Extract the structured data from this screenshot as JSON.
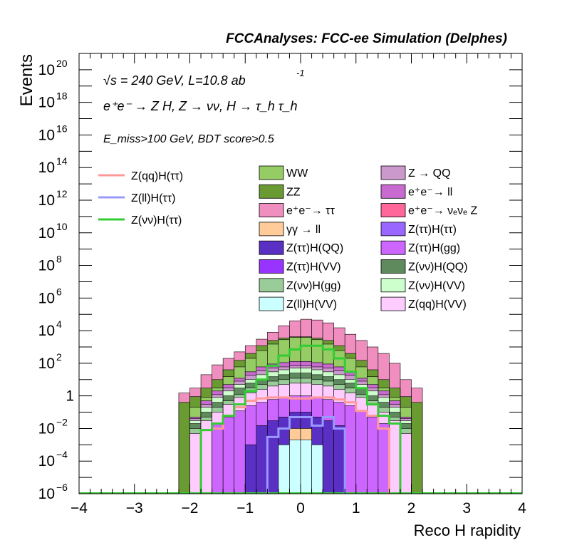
{
  "chart_data": {
    "type": "histogram",
    "title": "FCCAnalyses: FCC-ee Simulation (Delphes)",
    "xlabel": "Reco H rapidity",
    "ylabel": "Events",
    "xlim": [
      -4,
      4
    ],
    "ylim": [
      1e-06,
      1e+21
    ],
    "log_y": true,
    "grid": false,
    "legend_position": "top (three columns)",
    "annotations": {
      "energy": "√s = 240 GeV, L=10.8 ab",
      "energy_exp": "-1",
      "process": "e⁺e⁻ → Z H, Z → νν, H → τ_h τ_h",
      "cuts": "E_miss>100 GeV, BDT score>0.5"
    },
    "x_ticks": [
      -4,
      -3,
      -2,
      -1,
      0,
      1,
      2,
      3,
      4
    ],
    "x_tick_labels": [
      "−4",
      "−3",
      "−2",
      "−1",
      "0",
      "1",
      "2",
      "3",
      "4"
    ],
    "y_ticks": [
      {
        "value": 1e-06,
        "base": "10",
        "exp": "−6"
      },
      {
        "value": 0.0001,
        "base": "10",
        "exp": "−4"
      },
      {
        "value": 0.01,
        "base": "10",
        "exp": "−2"
      },
      {
        "value": 1,
        "base": "1",
        "exp": ""
      },
      {
        "value": 100.0,
        "base": "10",
        "exp": "2"
      },
      {
        "value": 10000.0,
        "base": "10",
        "exp": "4"
      },
      {
        "value": 1000000.0,
        "base": "10",
        "exp": "6"
      },
      {
        "value": 100000000.0,
        "base": "10",
        "exp": "8"
      },
      {
        "value": 10000000000.0,
        "base": "10",
        "exp": "10"
      },
      {
        "value": 1000000000000.0,
        "base": "10",
        "exp": "12"
      },
      {
        "value": 100000000000000.0,
        "base": "10",
        "exp": "14"
      },
      {
        "value": 1e+16,
        "base": "10",
        "exp": "16"
      },
      {
        "value": 1e+18,
        "base": "10",
        "exp": "18"
      },
      {
        "value": 1e+20,
        "base": "10",
        "exp": "20"
      }
    ],
    "bin_edges": [
      -2.2,
      -2.0,
      -1.8,
      -1.6,
      -1.4,
      -1.2,
      -1.0,
      -0.8,
      -0.6,
      -0.4,
      -0.2,
      0.0,
      0.2,
      0.4,
      0.6,
      0.8,
      1.0,
      1.2,
      1.4,
      1.6,
      1.8,
      2.0,
      2.2
    ],
    "stack_envelopes": [
      {
        "name": "e⁺e⁻→ ττ",
        "color": "#f08fbf",
        "values": [
          1.5,
          3,
          20,
          80,
          200,
          500,
          1200,
          3000,
          8000,
          20000,
          40000,
          50000,
          45000,
          30000,
          15000,
          6000,
          2500,
          1000,
          400,
          100,
          10,
          3
        ]
      },
      {
        "name": "ZZ",
        "color": "#6a9a32",
        "values": [
          0.4,
          0.9,
          3,
          10,
          40,
          150,
          400,
          1200,
          2500,
          3500,
          4200,
          4200,
          3500,
          2500,
          1200,
          400,
          150,
          40,
          10,
          3,
          0.9,
          0.4
        ]
      },
      {
        "name": "WW",
        "color": "#96cc64",
        "values": [
          0,
          0.2,
          0.8,
          3,
          15,
          60,
          200,
          600,
          1500,
          2800,
          3800,
          3800,
          2800,
          1500,
          600,
          200,
          60,
          15,
          3,
          0.8,
          0.2,
          0
        ]
      },
      {
        "name": "e⁺e⁻→ ll",
        "color": "#c86ad0",
        "values": [
          0,
          0.05,
          0.5,
          2,
          5,
          12,
          30,
          60,
          90,
          110,
          130,
          130,
          110,
          90,
          60,
          30,
          12,
          5,
          2,
          0.5,
          0.05,
          0
        ]
      },
      {
        "name": "Z → QQ",
        "color": "#cc99cc",
        "values": [
          0,
          0.04,
          0.3,
          1.2,
          3,
          8,
          18,
          35,
          50,
          60,
          70,
          70,
          60,
          50,
          35,
          18,
          8,
          3,
          1.2,
          0.3,
          0.04,
          0
        ]
      },
      {
        "name": "Z(νν)H(VV)",
        "color": "#ccffcc",
        "values": [
          0,
          0.03,
          0.2,
          0.8,
          2,
          5,
          10,
          20,
          30,
          40,
          50,
          50,
          40,
          30,
          20,
          10,
          5,
          2,
          0.8,
          0.2,
          0.03,
          0
        ]
      },
      {
        "name": "Z(νν)H(QQ)",
        "color": "#5e8a5e",
        "values": [
          0,
          0.02,
          0.1,
          0.4,
          1,
          3,
          6,
          10,
          15,
          20,
          25,
          25,
          20,
          15,
          10,
          6,
          3,
          1,
          0.4,
          0.1,
          0.02,
          0
        ]
      },
      {
        "name": "Z(νν)H(gg)",
        "color": "#99cc99",
        "values": [
          0,
          0.01,
          0.05,
          0.2,
          0.5,
          1.2,
          3,
          5,
          8,
          10,
          12,
          12,
          10,
          8,
          5,
          3,
          1.2,
          0.5,
          0.2,
          0.05,
          0.01,
          0
        ]
      },
      {
        "name": "Z(qq)H(VV)",
        "color": "#ffccff",
        "values": [
          0,
          0.005,
          0.03,
          0.1,
          0.3,
          0.8,
          1.5,
          2.5,
          4,
          5,
          6,
          6,
          5,
          4,
          2.5,
          1.5,
          0.8,
          0.3,
          0.1,
          0.03,
          0.005,
          0
        ]
      },
      {
        "name": "Z(ττ)H(gg)",
        "color": "#cc66ff",
        "values": [
          0,
          0,
          0,
          0.02,
          0.05,
          0.12,
          0.25,
          0.4,
          0.6,
          0.8,
          1,
          1,
          0.8,
          0.6,
          0.4,
          0.25,
          0.12,
          0.05,
          0.02,
          0,
          0,
          0
        ]
      },
      {
        "name": "Z(ττ)H(QQ)",
        "color": "#5a2fc4",
        "values": [
          0,
          0,
          0,
          0,
          0,
          0,
          0.001,
          0.015,
          0.03,
          0.05,
          0.1,
          0.1,
          0.05,
          0.03,
          0.015,
          1e-06,
          0,
          0,
          0,
          0,
          0,
          0
        ]
      },
      {
        "name": "γγ → ll",
        "color": "#ffcc99",
        "values": [
          0,
          0,
          0,
          0,
          0,
          0,
          0,
          0,
          0,
          0,
          0.01,
          0.01,
          0,
          0,
          0,
          0,
          0,
          0,
          0,
          0,
          0,
          0
        ]
      },
      {
        "name": "Z(ll)H(VV)",
        "color": "#ccffff",
        "values": [
          0,
          0,
          0,
          0,
          0,
          0,
          0,
          0,
          0,
          0.001,
          0.002,
          0.002,
          0.001,
          0,
          0,
          0,
          0,
          0,
          0,
          0,
          0,
          0
        ]
      }
    ],
    "overlays": [
      {
        "name": "Z(qq)H(ττ)",
        "color": "#ff9999",
        "bin_edges": [
          -1.8,
          -1.6,
          -1.4,
          -1.2,
          -1.0,
          -0.8,
          -0.6,
          -0.4,
          -0.2,
          0.0,
          0.2,
          0.4,
          0.6,
          0.8,
          1.0,
          1.2,
          1.4,
          1.6
        ],
        "values": [
          0.008,
          0.01,
          0.06,
          0.2,
          0.5,
          0.7,
          0.8,
          0.8,
          0.7,
          0.7,
          0.8,
          0.8,
          0.6,
          0.4,
          0.12,
          0.06,
          0.01
        ]
      },
      {
        "name": "Z(ll)H(ττ)",
        "color": "#9999ff",
        "bin_edges": [
          -0.6,
          -0.4,
          -0.2,
          0.0,
          0.2,
          0.4,
          0.6,
          0.8
        ],
        "values": [
          0.003,
          0.01,
          0.05,
          0.05,
          0.015,
          0.05,
          0.01
        ]
      },
      {
        "name": "Z(νν)H(ττ)",
        "color": "#33cc33",
        "bin_edges": [
          -1.8,
          -1.6,
          -1.4,
          -1.2,
          -1.0,
          -0.8,
          -0.6,
          -0.4,
          -0.2,
          0.0,
          0.2,
          0.4,
          0.6,
          0.8,
          1.0,
          1.2,
          1.4,
          1.6,
          1.8
        ],
        "values": [
          0.008,
          0.02,
          0.06,
          0.3,
          2,
          10,
          70,
          300,
          700,
          1200,
          1200,
          700,
          200,
          30,
          3,
          0.3,
          0.06,
          0.02
        ]
      }
    ],
    "legend_lines": [
      {
        "label": "Z(qq)H(ττ)",
        "color": "#ff9999"
      },
      {
        "label": "Z(ll)H(ττ)",
        "color": "#9999ff"
      },
      {
        "label": "Z(νν)H(ττ)",
        "color": "#33cc33"
      }
    ],
    "legend_fills": [
      {
        "label": "WW",
        "color": "#96cc64"
      },
      {
        "label": "Z → QQ",
        "color": "#cc99cc"
      },
      {
        "label": "ZZ",
        "color": "#6a9a32"
      },
      {
        "label": "e⁺e⁻→ ll",
        "color": "#c86ad0"
      },
      {
        "label": "e⁺e⁻→ ττ",
        "color": "#f08fbf"
      },
      {
        "label": "e⁺e⁻→ νₑνₑ Z",
        "color": "#ff6699"
      },
      {
        "label": "γγ → ll",
        "color": "#ffcc99"
      },
      {
        "label": "Z(ττ)H(ττ)",
        "color": "#9966ff"
      },
      {
        "label": "Z(ττ)H(QQ)",
        "color": "#5a2fc4"
      },
      {
        "label": "Z(ττ)H(gg)",
        "color": "#cc66ff"
      },
      {
        "label": "Z(ττ)H(VV)",
        "color": "#9933ff"
      },
      {
        "label": "Z(νν)H(QQ)",
        "color": "#5e8a5e"
      },
      {
        "label": "Z(νν)H(gg)",
        "color": "#99cc99"
      },
      {
        "label": "Z(νν)H(VV)",
        "color": "#ccffcc"
      },
      {
        "label": "Z(ll)H(VV)",
        "color": "#ccffff"
      },
      {
        "label": "Z(qq)H(VV)",
        "color": "#ffccff"
      }
    ]
  }
}
